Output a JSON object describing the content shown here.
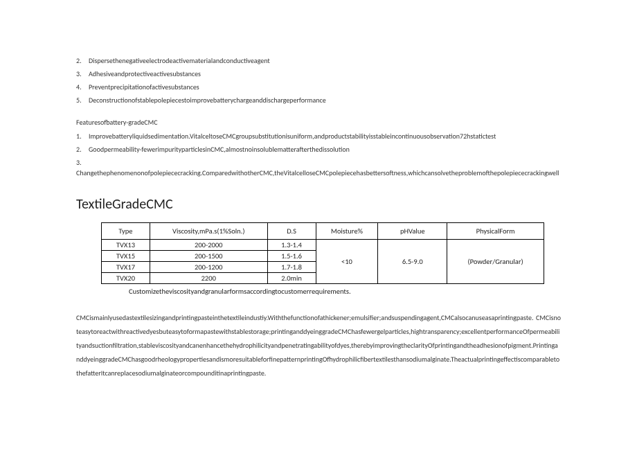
{
  "list1": {
    "items": [
      {
        "n": "2.",
        "t": "Dispersethenegativeelectrodeactivematerialandconductiveagent"
      },
      {
        "n": "3.",
        "t": "Adhesiveandprotectiveactivesubstances"
      },
      {
        "n": "4.",
        "t": "Preventprecipitationofactivesubstances"
      },
      {
        "n": "5.",
        "t": "Deconstructionofstablepolepiecestoimprovebatterychargeanddischargeperformance"
      }
    ]
  },
  "features_label": "Featuresofbattery-gradeCMC",
  "list2": {
    "items": [
      {
        "n": "1.",
        "t": "Improvebatteryliquidsedimentation.VitalceltoseCMCgroupsubstitutionisuniform,andproductstabilityisstableincontinuousobservation72hstatictest"
      },
      {
        "n": "2.",
        "t": "Goodpermeability-fewerimpurityparticlesinCMC,almostnoinsolublematterafterthedissolution"
      },
      {
        "n": "3.",
        "t": "Changethephenomenonofpolepiececracking.ComparedwithotherCMC,theVitalcelloseCMCpolepiecehasbettersoftness,whichcansolvetheproblemofthepolepiececrackingwell"
      }
    ]
  },
  "heading": "TextileGradeCMC",
  "table": {
    "headers": {
      "type": "Type",
      "viscosity": "Viscosity,mPa.s(1%Soln.)",
      "ds": "D.S",
      "moisture": "Moisture%",
      "ph": "pHValue",
      "form": "PhysicalForm"
    },
    "rows": [
      {
        "type": "TVX13",
        "viscosity": "200-2000",
        "ds": "1.3-1.4"
      },
      {
        "type": "TVX15",
        "viscosity": "200-1500",
        "ds": "1.5-1.6"
      },
      {
        "type": "TVX17",
        "viscosity": "200-1200",
        "ds": "1.7-1.8"
      },
      {
        "type": "TVX20",
        "viscosity": "2200",
        "ds": "2.0min"
      }
    ],
    "moisture": "<10",
    "ph": "6.5-9.0",
    "form": "(Powder/Granular)"
  },
  "table_note": "Customizetheviscosityandgranularformsaccordingtocustomerrequirements.",
  "paragraph": "CMCismainlyusedastextilesizingandprintingpasteinthetextileindustiy.Withthefunctionofathickener;emulsifier;andsuspendingagent,CMCalsocanuseasaprintingpaste. CMCisnoteasytoreactwithreactivedyesbuteasytoformapastewithstablestorage;printinganddyeinggradeCMChasfewergelparticles,hightransparency;excellentperformanceOfpermeabilityandsuctionfiltration,stableviscosityandcanenhancethehydrophilicityandpenetratingabilityofdyes,therebyimprovingtheclarityOfprintingandtheadhesionofpigment.PrintinganddyeinggradeCMChasgoodrheologypropertiesandismoresuitableforfinepatternprintingOfhydrophilicfibertextilesthansodiumalginate.TheactualprintingeffectiscomparabletothefatterItcanreplacesodiumalginateorcompounditinaprintingpaste."
}
